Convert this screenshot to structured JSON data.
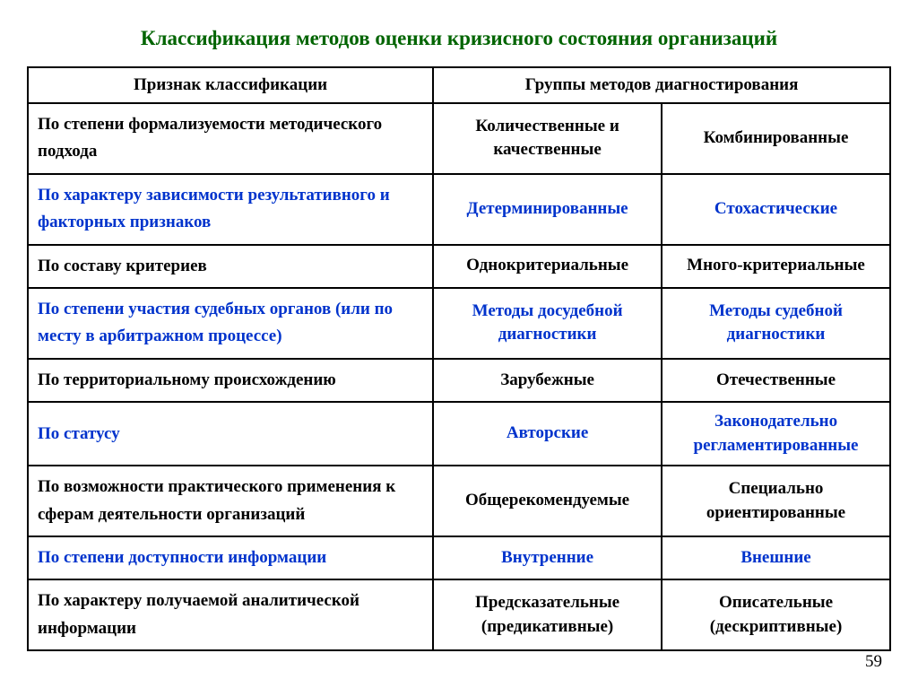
{
  "title": "Классификация методов оценки кризисного состояния организаций",
  "title_color": "#006400",
  "page_number": "59",
  "text_color_default": "#000000",
  "text_color_highlight": "#0033cc",
  "border_color": "#000000",
  "background_color": "#ffffff",
  "font_family": "Times New Roman",
  "columns": {
    "c1_width_pct": 47,
    "c2_width_pct": 26.5,
    "c3_width_pct": 26.5
  },
  "header": {
    "col1": "Признак классификации",
    "col2_span": "Группы методов диагностирования"
  },
  "rows": [
    {
      "criterion": "По степени формализуемости методического подхода",
      "group1": "Количественные и качественные",
      "group2": "Комбинированные",
      "highlight": false
    },
    {
      "criterion": "По характеру зависимости результативного и факторных признаков",
      "group1": "Детерминированные",
      "group2": "Стохастические",
      "highlight": true
    },
    {
      "criterion": "По составу критериев",
      "group1": "Однокритериальные",
      "group2": "Много-критериальные",
      "highlight": false
    },
    {
      "criterion": "По степени участия судебных органов (или по месту в арбитражном процессе)",
      "group1": "Методы досудебной диагностики",
      "group2": "Методы судебной диагностики",
      "highlight": true
    },
    {
      "criterion": "По территориальному происхождению",
      "group1": "Зарубежные",
      "group2": "Отечественные",
      "highlight": false
    },
    {
      "criterion": "По статусу",
      "group1": "Авторские",
      "group2": "Законодательно регламентированные",
      "highlight": true
    },
    {
      "criterion": "По возможности практического применения к сферам деятельности организаций",
      "group1": "Общерекомендуемые",
      "group2": "Специально ориентированные",
      "highlight": false
    },
    {
      "criterion": "По степени доступности информации",
      "group1": "Внутренние",
      "group2": "Внешние",
      "highlight": true
    },
    {
      "criterion": "По характеру получаемой аналитической информации",
      "group1": "Предсказательные (предикативные)",
      "group2": "Описательные (дескриптивные)",
      "highlight": false
    }
  ]
}
